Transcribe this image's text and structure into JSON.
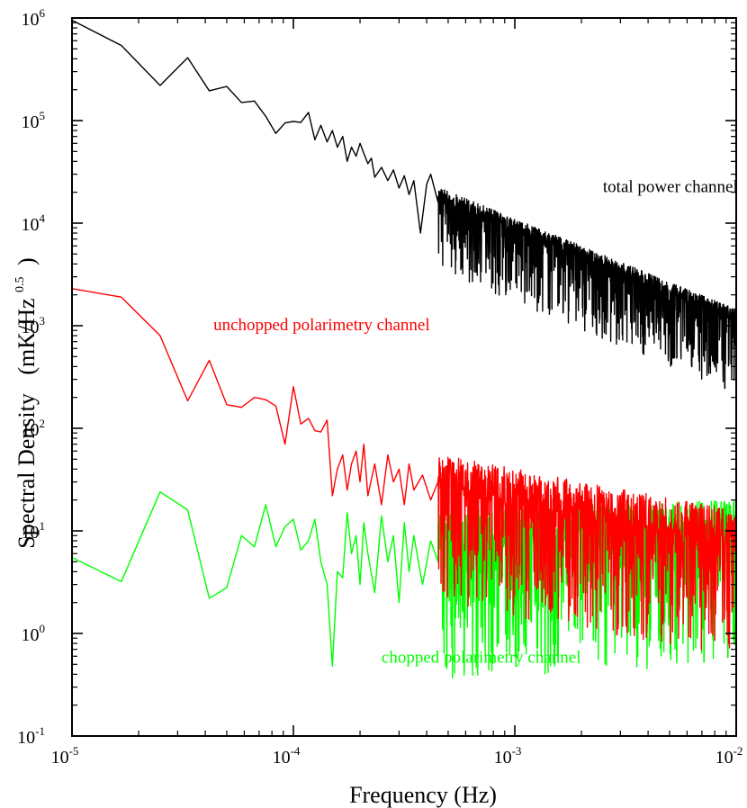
{
  "chart_data": {
    "type": "line",
    "xscale": "log",
    "yscale": "log",
    "xlabel": "Frequency (Hz)",
    "ylabel_main": "Spectral Density",
    "ylabel_units_prefix": "(mK/Hz",
    "ylabel_units_exp": "0.5",
    "ylabel_units_suffix": ")",
    "xlim": [
      1e-05,
      0.01
    ],
    "ylim": [
      0.1,
      1000000
    ],
    "x_ticks": [
      {
        "base": "10",
        "exp": "-5",
        "value": 1e-05
      },
      {
        "base": "10",
        "exp": "-4",
        "value": 0.0001
      },
      {
        "base": "10",
        "exp": "-3",
        "value": 0.001
      },
      {
        "base": "10",
        "exp": "-2",
        "value": 0.01
      }
    ],
    "y_ticks": [
      {
        "base": "10",
        "exp": "-1",
        "value": 0.1
      },
      {
        "base": "10",
        "exp": "0",
        "value": 1
      },
      {
        "base": "10",
        "exp": "1",
        "value": 10
      },
      {
        "base": "10",
        "exp": "2",
        "value": 100
      },
      {
        "base": "10",
        "exp": "3",
        "value": 1000
      },
      {
        "base": "10",
        "exp": "4",
        "value": 10000
      },
      {
        "base": "10",
        "exp": "5",
        "value": 100000
      },
      {
        "base": "10",
        "exp": "6",
        "value": 1000000
      }
    ],
    "series": [
      {
        "name": "total power channel",
        "color": "#000000",
        "low_freq_points": [
          [
            1e-05,
            950000
          ],
          [
            1.67e-05,
            540000
          ],
          [
            2.5e-05,
            220000
          ],
          [
            3.33e-05,
            410000
          ],
          [
            4.17e-05,
            195000
          ],
          [
            5e-05,
            215000
          ],
          [
            5.83e-05,
            150000
          ],
          [
            6.67e-05,
            155000
          ],
          [
            7.5e-05,
            110000
          ],
          [
            8.33e-05,
            75000
          ],
          [
            9.17e-05,
            95000
          ],
          [
            0.0001,
            98000
          ],
          [
            0.000108,
            96000
          ],
          [
            0.000117,
            120000
          ],
          [
            0.000125,
            65000
          ],
          [
            0.000133,
            90000
          ],
          [
            0.000142,
            62000
          ],
          [
            0.00015,
            80000
          ],
          [
            0.000158,
            55000
          ],
          [
            0.000167,
            70000
          ],
          [
            0.000175,
            40000
          ],
          [
            0.000183,
            55000
          ],
          [
            0.000192,
            45000
          ],
          [
            0.0002,
            60000
          ],
          [
            0.000208,
            48000
          ],
          [
            0.000217,
            38000
          ],
          [
            0.000225,
            43000
          ],
          [
            0.000233,
            28000
          ],
          [
            0.00025,
            35000
          ],
          [
            0.000267,
            26000
          ],
          [
            0.000283,
            33000
          ],
          [
            0.0003,
            22000
          ],
          [
            0.000317,
            29000
          ],
          [
            0.000333,
            19000
          ],
          [
            0.00035,
            26000
          ],
          [
            0.000375,
            8000
          ],
          [
            0.0004,
            24000
          ],
          [
            0.000417,
            30000
          ],
          [
            0.00045,
            16000
          ]
        ],
        "trend": {
          "from_freq": 0.00045,
          "from_value": 17000,
          "to_freq": 0.01,
          "to_value": 1100
        },
        "label": {
          "text": "total power channel",
          "x": 0.0025,
          "y": 20000
        }
      },
      {
        "name": "unchopped polarimetry channel",
        "color": "#ff0000",
        "low_freq_points": [
          [
            1e-05,
            2300
          ],
          [
            1.67e-05,
            1900
          ],
          [
            2.5e-05,
            800
          ],
          [
            3.33e-05,
            185
          ],
          [
            4.17e-05,
            460
          ],
          [
            5e-05,
            170
          ],
          [
            5.83e-05,
            160
          ],
          [
            6.67e-05,
            200
          ],
          [
            7.5e-05,
            190
          ],
          [
            8.33e-05,
            165
          ],
          [
            9.17e-05,
            70
          ],
          [
            0.0001,
            255
          ],
          [
            0.000108,
            110
          ],
          [
            0.000117,
            125
          ],
          [
            0.000125,
            95
          ],
          [
            0.000133,
            92
          ],
          [
            0.000142,
            120
          ],
          [
            0.00015,
            22
          ],
          [
            0.000158,
            40
          ],
          [
            0.000167,
            55
          ],
          [
            0.000175,
            25
          ],
          [
            0.000183,
            45
          ],
          [
            0.000192,
            60
          ],
          [
            0.0002,
            30
          ],
          [
            0.000208,
            70
          ],
          [
            0.000217,
            22
          ],
          [
            0.000233,
            45
          ],
          [
            0.00025,
            18
          ],
          [
            0.000267,
            55
          ],
          [
            0.000283,
            30
          ],
          [
            0.0003,
            40
          ],
          [
            0.000317,
            18
          ],
          [
            0.000333,
            45
          ],
          [
            0.00035,
            25
          ],
          [
            0.000383,
            35
          ],
          [
            0.000417,
            20
          ],
          [
            0.00045,
            30
          ]
        ],
        "trend": {
          "from_freq": 0.00045,
          "from_value": 25,
          "to_freq": 0.01,
          "to_value": 7
        },
        "label": {
          "text": "unchopped polarimetry channel",
          "x": 4.35e-05,
          "y": 900
        }
      },
      {
        "name": "chopped polarimetry channel",
        "color": "#00ff00",
        "low_freq_points": [
          [
            1e-05,
            5.5
          ],
          [
            1.67e-05,
            3.2
          ],
          [
            2.5e-05,
            24
          ],
          [
            3.33e-05,
            16
          ],
          [
            4.17e-05,
            2.2
          ],
          [
            5e-05,
            2.8
          ],
          [
            5.83e-05,
            9
          ],
          [
            6.67e-05,
            7
          ],
          [
            7.5e-05,
            18
          ],
          [
            8.33e-05,
            7
          ],
          [
            9.17e-05,
            11
          ],
          [
            0.0001,
            13
          ],
          [
            0.000108,
            6.5
          ],
          [
            0.000117,
            8
          ],
          [
            0.000125,
            13
          ],
          [
            0.000133,
            5
          ],
          [
            0.000142,
            3
          ],
          [
            0.00015,
            0.48
          ],
          [
            0.000158,
            4
          ],
          [
            0.000167,
            3.5
          ],
          [
            0.000175,
            15
          ],
          [
            0.000183,
            6
          ],
          [
            0.000192,
            9
          ],
          [
            0.0002,
            3
          ],
          [
            0.000208,
            12
          ],
          [
            0.000217,
            6
          ],
          [
            0.000233,
            2.5
          ],
          [
            0.00025,
            14
          ],
          [
            0.000267,
            5
          ],
          [
            0.000283,
            9
          ],
          [
            0.0003,
            2
          ],
          [
            0.000317,
            12
          ],
          [
            0.000333,
            4
          ],
          [
            0.00035,
            9
          ],
          [
            0.000383,
            3
          ],
          [
            0.000417,
            8
          ],
          [
            0.00045,
            5
          ]
        ],
        "trend": {
          "from_freq": 0.00045,
          "from_value": 7,
          "to_freq": 0.01,
          "to_value": 9
        },
        "label": {
          "text": "chopped polarimetry channel",
          "x": 0.00025,
          "y": 0.52
        }
      }
    ],
    "grid": false,
    "legend": "none (inline labels)"
  }
}
